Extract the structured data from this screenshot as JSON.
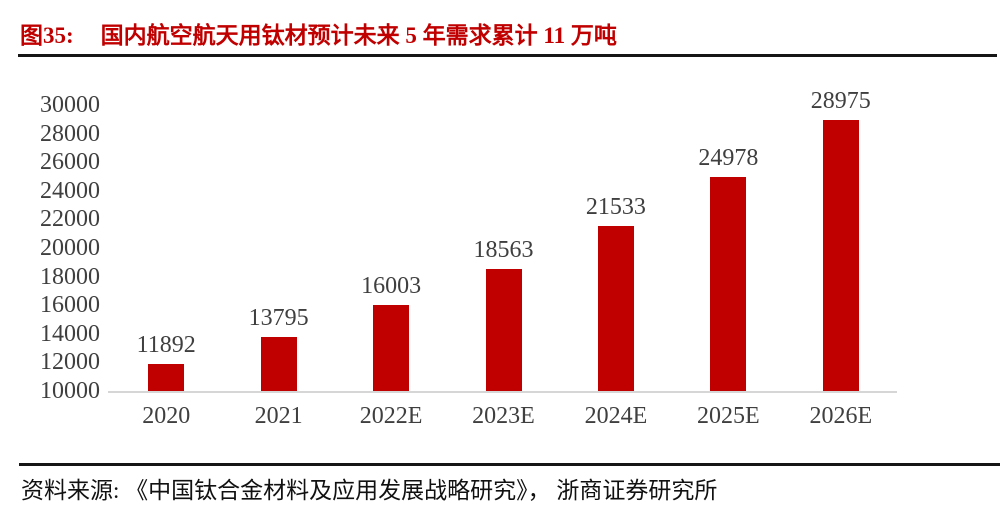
{
  "figure": {
    "label": "图35:",
    "title": "国内航空航天用钛材预计未来 5 年需求累计 11 万吨"
  },
  "chart_data": {
    "type": "bar",
    "title": "国内航空航天用钛材预计未来 5 年需求累计 11 万吨",
    "categories": [
      "2020",
      "2021",
      "2022E",
      "2023E",
      "2024E",
      "2025E",
      "2026E"
    ],
    "values": [
      11892,
      13795,
      16003,
      18563,
      21533,
      24978,
      28975
    ],
    "xlabel": "",
    "ylabel": "",
    "ylim": [
      10000,
      30000
    ],
    "ytick_step": 2000,
    "yticks": [
      10000,
      12000,
      14000,
      16000,
      18000,
      20000,
      22000,
      24000,
      26000,
      28000,
      30000
    ],
    "grid": false,
    "legend_position": "none",
    "data_labels_shown": true,
    "bar_color": "#c00000"
  },
  "source": {
    "text": "资料来源: 《中国钛合金材料及应用发展战略研究》， 浙商证券研究所"
  },
  "colors": {
    "accent_red": "#c00000",
    "tick_text": "#3f3f3f",
    "divider": "#161616",
    "axis_line": "#d6d6d6"
  }
}
